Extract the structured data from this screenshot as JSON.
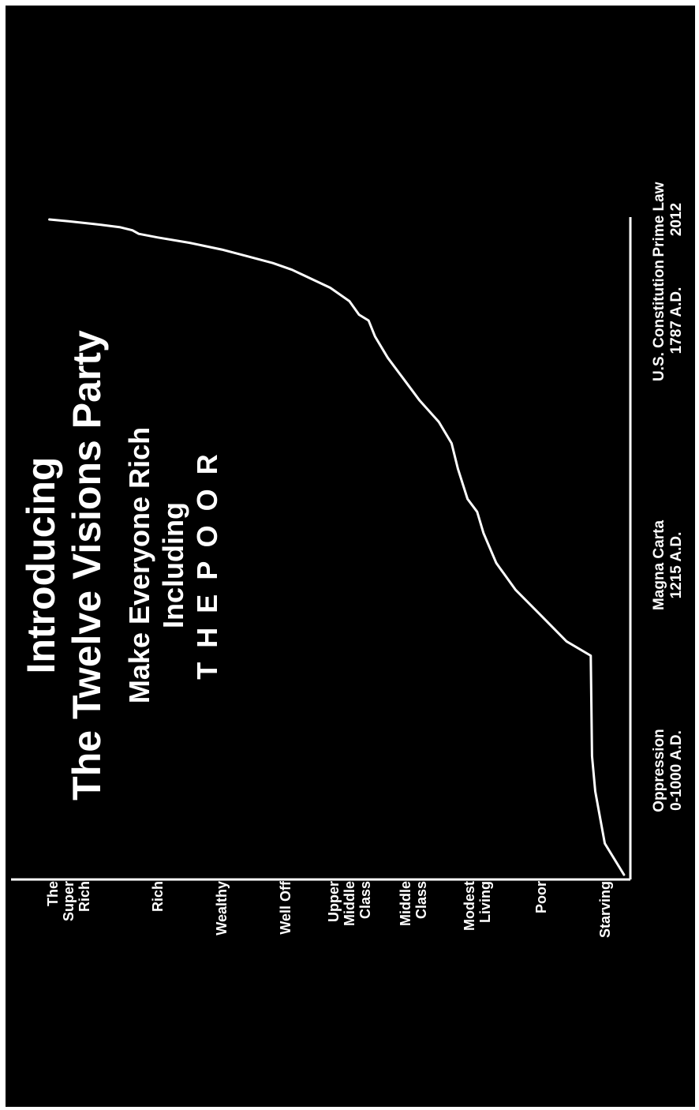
{
  "title": "Introducing",
  "subtitle": "The Twelve Visions Party",
  "tagline": "Make Everyone Rich",
  "tagline2": "Including",
  "tagline3": "T H E  P O O R",
  "colors": {
    "background": "#000000",
    "foreground": "#ffffff",
    "frame": "#ffffff"
  },
  "chart_data": {
    "type": "line",
    "title": "",
    "xlabel": "",
    "ylabel": "",
    "x_ticks": [
      {
        "lines": [
          "Oppression",
          "0-1000 A.D."
        ],
        "x": 500
      },
      {
        "lines": [
          "Magna Carta",
          "1215 A.D."
        ],
        "x": 1215
      },
      {
        "lines": [
          "U.S. Constitution",
          "1787 A.D."
        ],
        "x": 1787
      },
      {
        "lines": [
          "Prime Law",
          "2012"
        ],
        "x": 2012
      }
    ],
    "y_ticks": [
      {
        "lines": [
          "Starving"
        ],
        "y": 0
      },
      {
        "lines": [
          "Poor"
        ],
        "y": 1
      },
      {
        "lines": [
          "Modest",
          "Living"
        ],
        "y": 2
      },
      {
        "lines": [
          "Middle",
          "Class"
        ],
        "y": 3
      },
      {
        "lines": [
          "Upper",
          "Middle",
          "Class"
        ],
        "y": 4
      },
      {
        "lines": [
          "Well Off"
        ],
        "y": 5
      },
      {
        "lines": [
          "Wealthy"
        ],
        "y": 6
      },
      {
        "lines": [
          "Rich"
        ],
        "y": 7
      },
      {
        "lines": [
          "The",
          "Super",
          "Rich"
        ],
        "y": 8.4
      }
    ],
    "ylim": [
      -0.4,
      9.3
    ],
    "grid": false,
    "legend": "none",
    "series": [
      {
        "points": [
          [
            0,
            -0.3
          ],
          [
            150,
            0.0
          ],
          [
            400,
            0.15
          ],
          [
            550,
            0.2
          ],
          [
            900,
            0.22
          ],
          [
            950,
            0.6
          ],
          [
            1040,
            1.0
          ],
          [
            1130,
            1.4
          ],
          [
            1220,
            1.7
          ],
          [
            1290,
            1.9
          ],
          [
            1340,
            2.0
          ],
          [
            1370,
            2.15
          ],
          [
            1440,
            2.3
          ],
          [
            1500,
            2.4
          ],
          [
            1550,
            2.6
          ],
          [
            1600,
            2.9
          ],
          [
            1650,
            3.15
          ],
          [
            1700,
            3.4
          ],
          [
            1750,
            3.6
          ],
          [
            1787,
            3.7
          ],
          [
            1800,
            3.85
          ],
          [
            1830,
            4.0
          ],
          [
            1860,
            4.3
          ],
          [
            1880,
            4.6
          ],
          [
            1900,
            4.9
          ],
          [
            1915,
            5.2
          ],
          [
            1930,
            5.6
          ],
          [
            1945,
            6.0
          ],
          [
            1960,
            6.5
          ],
          [
            1972,
            7.0
          ],
          [
            1980,
            7.3
          ],
          [
            1988,
            7.4
          ],
          [
            1995,
            7.6
          ],
          [
            2002,
            8.0
          ],
          [
            2008,
            8.4
          ],
          [
            2012,
            8.7
          ]
        ]
      }
    ]
  }
}
